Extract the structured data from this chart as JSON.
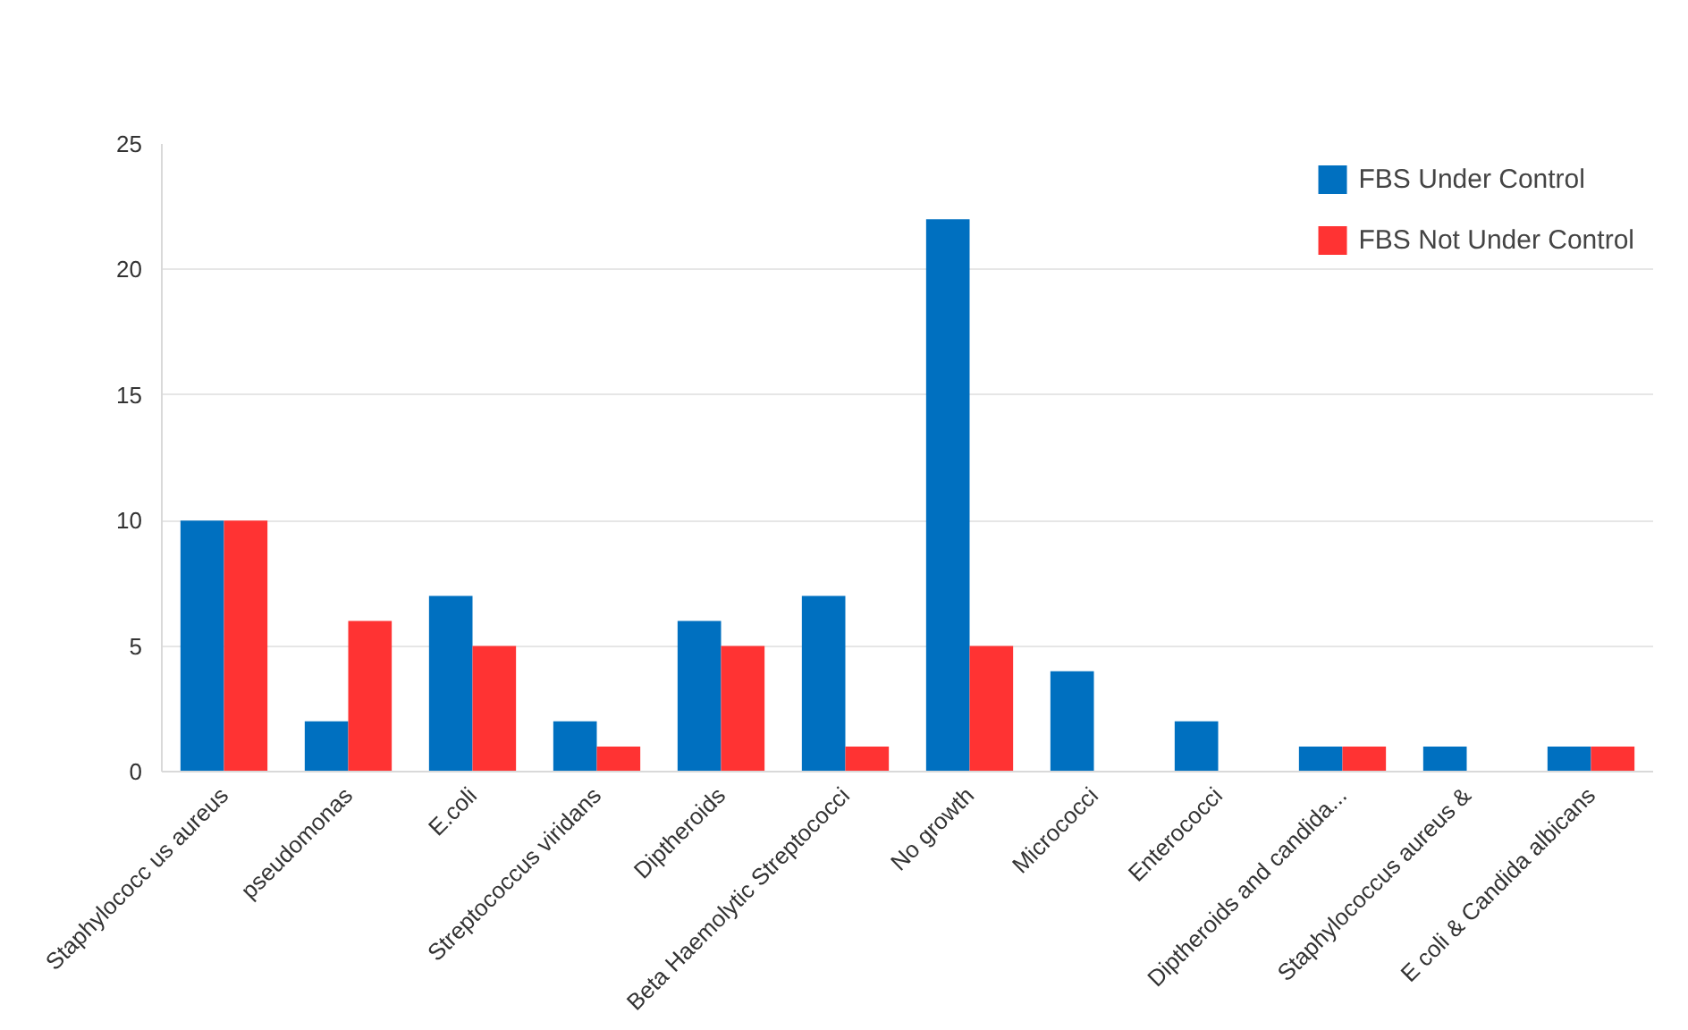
{
  "chart_data": {
    "type": "bar",
    "categories": [
      "Staphylococc us aureus",
      "pseudomonas",
      "E.coli",
      "Streptococcus viridans",
      "Diptheroids",
      "Beta Haemolytic Streptococci",
      "No growth",
      "Micrococci",
      "Enterococci",
      "Diptheroids and candida...",
      "Staphylococcus aureus &",
      "E coli & Candida albicans"
    ],
    "series": [
      {
        "name": "FBS Under Control",
        "color": "#0070c0",
        "values": [
          10,
          2,
          7,
          2,
          6,
          7,
          22,
          4,
          2,
          1,
          1,
          1
        ]
      },
      {
        "name": "FBS Not Under Control",
        "color": "#ff3333",
        "values": [
          10,
          6,
          5,
          1,
          5,
          1,
          5,
          null,
          null,
          1,
          null,
          1
        ]
      }
    ],
    "ylim": [
      0,
      25
    ],
    "yticks": [
      0,
      5,
      10,
      15,
      20,
      25
    ],
    "grid": "y",
    "legend": "top right"
  }
}
